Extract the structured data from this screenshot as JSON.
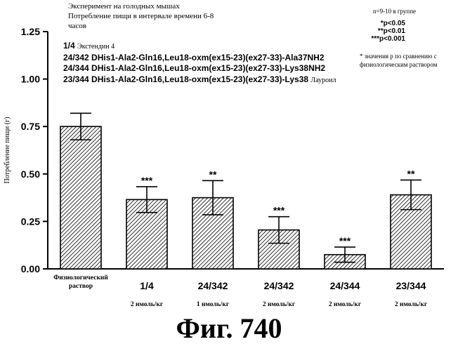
{
  "header": {
    "line1": "Эксперимент на голодных мышах",
    "line2": "Потребление пищи в интервале времени 6-8",
    "line3": "часов"
  },
  "legend": [
    {
      "id": "1/4",
      "text": "Экстендин 4",
      "small": true
    },
    {
      "id": "24/342",
      "text": "DHis1-Ala2-Gln16,Leu18-oxm(ex15-23)(ex27-33)-Ala37NH2",
      "small": false
    },
    {
      "id": "24/344",
      "text": "DHis1-Ala2-Gln16,Leu18-oxm(ex15-23)(ex27-33)-Lys38NH2",
      "small": false
    },
    {
      "id": "23/344",
      "text": "DHis1-Ala2-Gln16,Leu18-oxm(ex15-23)(ex27-33)-Lys38",
      "suffix": "Лауроил",
      "small": false
    }
  ],
  "stats": {
    "group_size": "n=9-10 в группе",
    "p_levels": [
      "*p<0.05",
      "**p<0.01",
      "***p<0.001"
    ],
    "note_line1": "* значения р по сравнению с",
    "note_line2": "физиологическим раствором"
  },
  "chart_data": {
    "type": "bar",
    "title": "",
    "ylabel": "Потребление пищи (г)",
    "xlabel": "",
    "ylim": [
      0,
      1.25
    ],
    "yticks": [
      "0.00",
      "0.25",
      "0.50",
      "0.75",
      "1.00",
      "1.25"
    ],
    "categories": [
      "Физиологический раствор",
      "1/4",
      "24/342",
      "24/342",
      "24/344",
      "23/344"
    ],
    "category_lines": [
      [
        "Физиологический",
        "раствор"
      ],
      [
        "1/4"
      ],
      [
        "24/342"
      ],
      [
        "24/342"
      ],
      [
        "24/344"
      ],
      [
        "23/344"
      ]
    ],
    "doses": [
      "",
      "2 нмоль/кг",
      "1 нмоль/кг",
      "2 нмоль/кг",
      "2 нмоль/кг",
      "2 нмоль/кг"
    ],
    "values": [
      0.75,
      0.365,
      0.375,
      0.205,
      0.075,
      0.39
    ],
    "errors": [
      0.07,
      0.068,
      0.09,
      0.07,
      0.04,
      0.078
    ],
    "significance": [
      "",
      "***",
      "**",
      "***",
      "***",
      "**"
    ],
    "fill": "diagonal hatch"
  },
  "figure_label": "Фиг.  740"
}
